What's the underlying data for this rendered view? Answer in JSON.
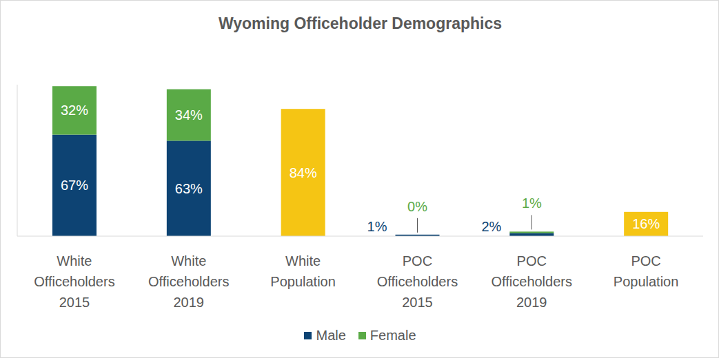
{
  "chart_data": {
    "type": "bar",
    "title": "Wyoming Officeholder Demographics",
    "categories": [
      "White Officeholders 2015",
      "White Officeholders 2019",
      "White Population",
      "POC Officeholders 2015",
      "POC Officeholders 2019",
      "POC Population"
    ],
    "series": [
      {
        "name": "Male",
        "color": "#0d4373",
        "values": [
          67,
          63,
          null,
          1,
          2,
          null
        ],
        "value_labels": [
          "67%",
          "63%",
          null,
          "1%",
          "2%",
          null
        ]
      },
      {
        "name": "Female",
        "color": "#5aaa46",
        "values": [
          32,
          34,
          null,
          0,
          1,
          null
        ],
        "value_labels": [
          "32%",
          "34%",
          null,
          "0%",
          "1%",
          null
        ]
      },
      {
        "color": "#f5c514",
        "values": [
          null,
          null,
          84,
          null,
          null,
          16
        ],
        "value_labels": [
          null,
          null,
          "84%",
          null,
          null,
          "16%"
        ]
      }
    ],
    "ylim": [
      0,
      100
    ],
    "stacked": true,
    "data_labels": true,
    "tick_labels": "x",
    "grid": false,
    "legend": "bottom"
  }
}
